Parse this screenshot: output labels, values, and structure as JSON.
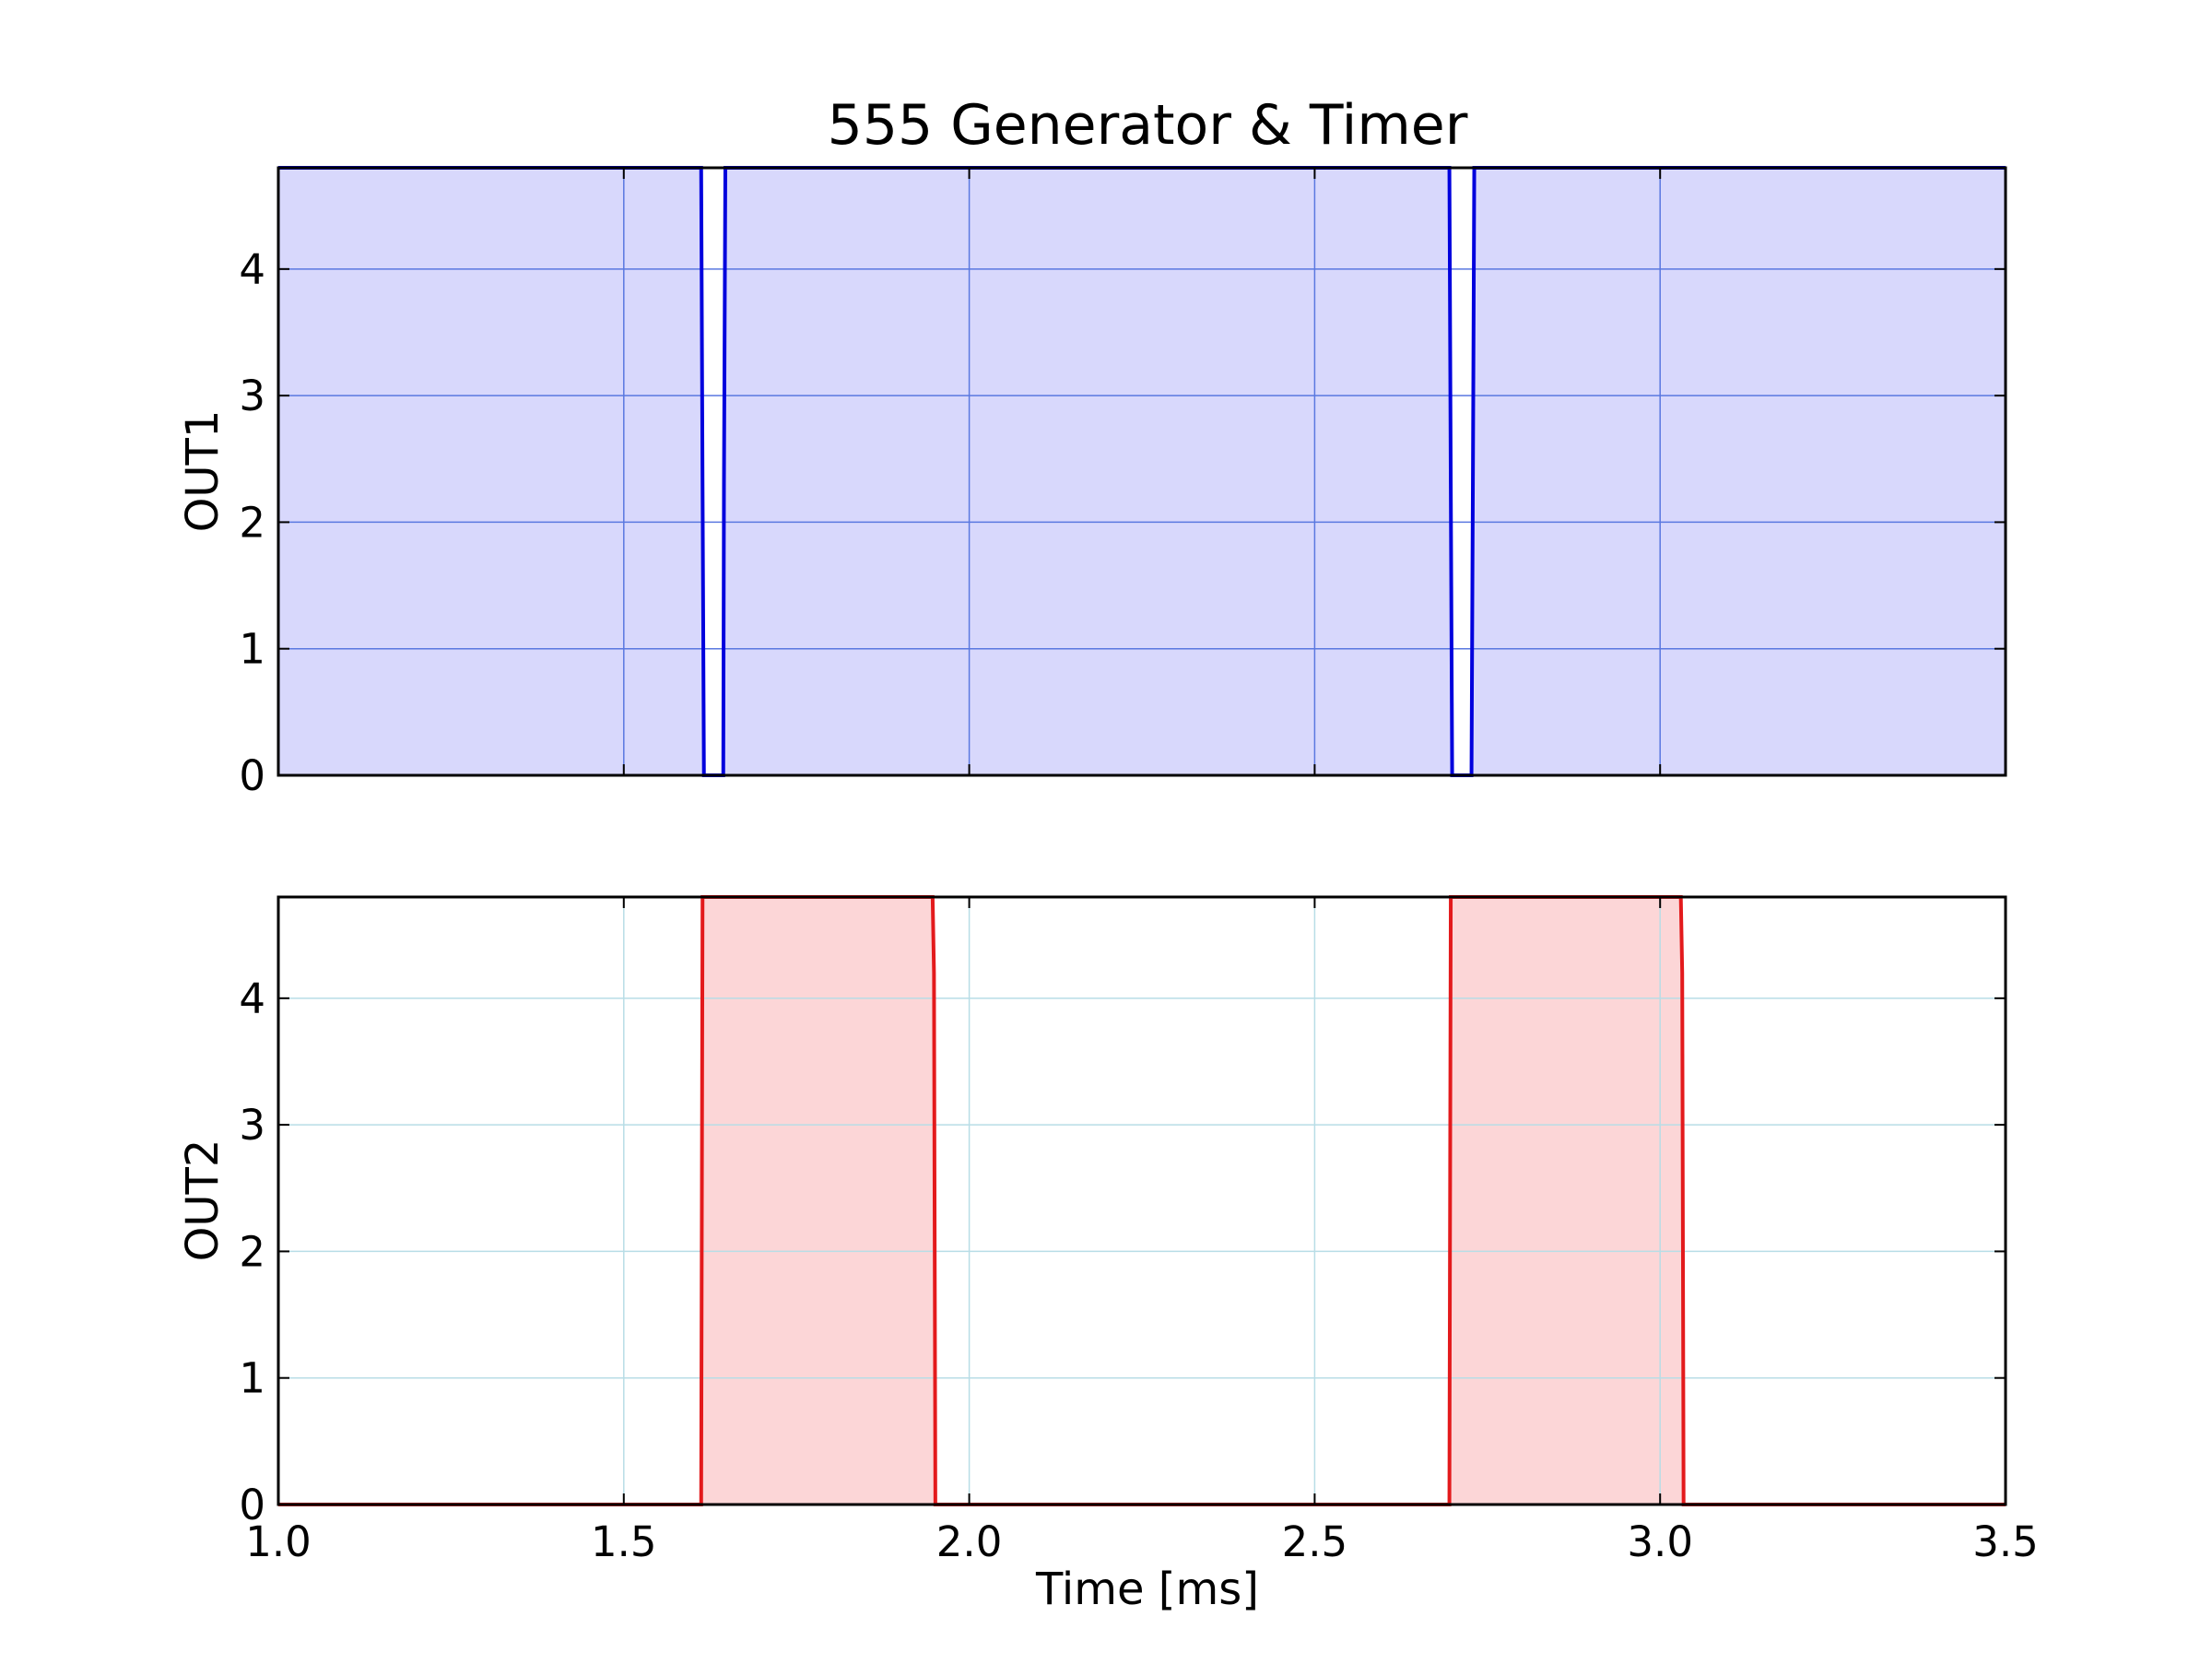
{
  "chart_data": [
    {
      "type": "area",
      "title": "555 Generator & Timer",
      "ylabel": "OUT1",
      "xlabel": "",
      "xlim": [
        1.0,
        3.5
      ],
      "ylim": [
        0,
        4.8
      ],
      "xticks": [
        1.0,
        1.5,
        2.0,
        2.5,
        3.0,
        3.5
      ],
      "yticks": [
        0,
        1,
        2,
        3,
        4
      ],
      "ytick_labels": [
        "0",
        "1",
        "2",
        "3",
        "4"
      ],
      "grid": true,
      "grid_color": "#5a78e0",
      "line_color": "#0000dd",
      "fill_color": "#d8d8fc",
      "series": [
        {
          "x": [
            1.0,
            1.612,
            1.614,
            1.616,
            1.644,
            1.645,
            1.647,
            2.695,
            2.697,
            2.699,
            2.727,
            2.729,
            2.731,
            3.5
          ],
          "values": [
            4.8,
            4.8,
            2.3,
            0,
            0,
            2.3,
            4.8,
            4.8,
            2.3,
            0,
            0,
            2.3,
            4.8,
            4.8
          ]
        }
      ]
    },
    {
      "type": "area",
      "title": "",
      "ylabel": "OUT2",
      "xlabel": "Time [ms]",
      "xlim": [
        1.0,
        3.5
      ],
      "ylim": [
        0,
        4.8
      ],
      "xticks": [
        1.0,
        1.5,
        2.0,
        2.5,
        3.0,
        3.5
      ],
      "xtick_labels": [
        "1.0",
        "1.5",
        "2.0",
        "2.5",
        "3.0",
        "3.5"
      ],
      "yticks": [
        0,
        1,
        2,
        3,
        4
      ],
      "ytick_labels": [
        "0",
        "1",
        "2",
        "3",
        "4"
      ],
      "grid": true,
      "grid_color": "#b8dde6",
      "line_color": "#e31a1c",
      "fill_color": "#fcd6d7",
      "series": [
        {
          "x": [
            1.0,
            1.612,
            1.614,
            1.947,
            1.949,
            1.951,
            2.695,
            2.697,
            3.03,
            3.032,
            3.034,
            3.5
          ],
          "values": [
            0,
            0,
            4.8,
            4.8,
            4.2,
            0,
            0,
            4.8,
            4.8,
            4.2,
            0,
            0
          ]
        }
      ]
    }
  ]
}
